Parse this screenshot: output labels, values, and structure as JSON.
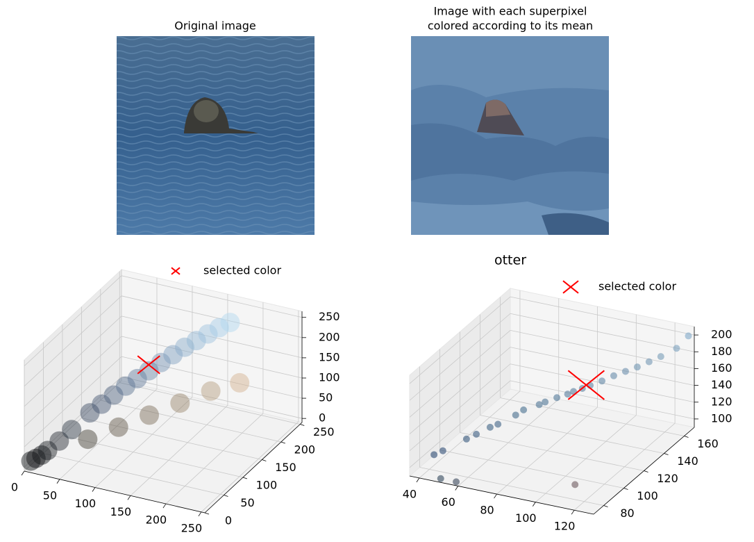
{
  "chart_data": [
    {
      "type": "image",
      "title": "Original image"
    },
    {
      "type": "image",
      "title": [
        "Image with each superpixel",
        "colored according to its mean"
      ]
    },
    {
      "type": "scatter3d",
      "legend_label": "selected color",
      "selected_color": "#ff0000",
      "xlim": [
        0,
        255
      ],
      "ylim": [
        0,
        255
      ],
      "zlim": [
        -10,
        265
      ],
      "xticks": [
        0,
        50,
        100,
        150,
        200,
        250
      ],
      "yticks": [
        0,
        50,
        100,
        150,
        200,
        250
      ],
      "zticks": [
        0,
        50,
        100,
        150,
        200,
        250
      ],
      "points": {
        "x": [
          5,
          10,
          15,
          20,
          30,
          40,
          55,
          65,
          75,
          85,
          95,
          105,
          115,
          125,
          135,
          145,
          155,
          165,
          175,
          60,
          90,
          120,
          150,
          180,
          210
        ],
        "y": [
          8,
          12,
          18,
          24,
          36,
          50,
          70,
          82,
          95,
          108,
          120,
          132,
          145,
          158,
          170,
          182,
          194,
          205,
          215,
          55,
          80,
          105,
          130,
          155,
          175
        ],
        "z": [
          10,
          15,
          20,
          28,
          45,
          65,
          95,
          110,
          125,
          140,
          152,
          165,
          178,
          190,
          202,
          212,
          222,
          232,
          240,
          45,
          65,
          85,
          105,
          125,
          140
        ]
      },
      "selected": {
        "x": 95,
        "y": 150,
        "z": 160
      }
    },
    {
      "type": "scatter3d",
      "title": "otter",
      "legend_label": "selected color",
      "selected_color": "#ff0000",
      "xlim": [
        35,
        130
      ],
      "ylim": [
        70,
        170
      ],
      "zlim": [
        90,
        210
      ],
      "xticks": [
        40,
        60,
        80,
        100,
        120
      ],
      "yticks": [
        80,
        100,
        120,
        140,
        160
      ],
      "zticks": [
        100,
        120,
        140,
        160,
        180,
        200
      ],
      "points": {
        "x": [
          45,
          48,
          55,
          58,
          62,
          65,
          70,
          72,
          78,
          80,
          84,
          88,
          90,
          93,
          96,
          100,
          104,
          108,
          112,
          116,
          120,
          125,
          50,
          58,
          110,
          128
        ],
        "y": [
          75,
          78,
          88,
          92,
          98,
          100,
          108,
          112,
          116,
          118,
          122,
          125,
          127,
          130,
          132,
          136,
          140,
          144,
          148,
          152,
          156,
          162,
          72,
          72,
          90,
          168
        ],
        "z": [
          115,
          118,
          125,
          128,
          132,
          135,
          140,
          143,
          148,
          150,
          153,
          156,
          158,
          160,
          163,
          166,
          170,
          173,
          176,
          180,
          184,
          190,
          92,
          92,
          95,
          200
        ]
      },
      "selected": {
        "x": 95,
        "y": 130,
        "z": 165
      }
    }
  ]
}
